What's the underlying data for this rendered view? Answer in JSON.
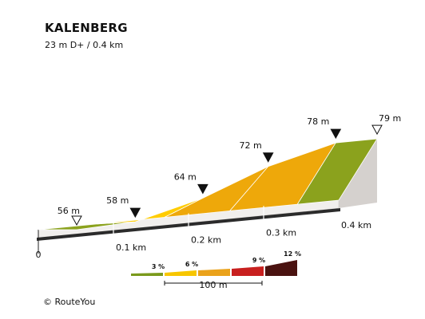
{
  "title": "KALENBERG",
  "subtitle": "23 m D+ / 0.4 km",
  "copyright": "© RouteYou",
  "chart_data": {
    "type": "area",
    "title": "KALENBERG",
    "subtitle": "23 m D+ / 0.4 km",
    "x_unit": "km",
    "xlim": [
      0,
      0.4
    ],
    "x_ticks": [
      {
        "value": 0,
        "label": "0"
      },
      {
        "value": 0.1,
        "label": "0.1 km"
      },
      {
        "value": 0.2,
        "label": "0.2 km"
      },
      {
        "value": 0.3,
        "label": "0.3 km"
      },
      {
        "value": 0.4,
        "label": "0.4 km"
      }
    ],
    "points": [
      {
        "x": 0,
        "elev": 56,
        "label": "56 m",
        "marker": "open"
      },
      {
        "x": 0.078,
        "elev": 58,
        "label": "58 m",
        "marker": "filled"
      },
      {
        "x": 0.168,
        "elev": 64,
        "label": "64 m",
        "marker": "filled"
      },
      {
        "x": 0.255,
        "elev": 72,
        "label": "72 m",
        "marker": "filled"
      },
      {
        "x": 0.345,
        "elev": 78,
        "label": "78 m",
        "marker": "filled"
      },
      {
        "x": 0.4,
        "elev": 79,
        "label": "79 m",
        "marker": "open"
      }
    ],
    "segments": [
      {
        "from": 0,
        "to": 0.078,
        "grade_class": "3 %"
      },
      {
        "from": 0.078,
        "to": 0.168,
        "grade_class": "6 %"
      },
      {
        "from": 0.168,
        "to": 0.255,
        "grade_class": "9 %"
      },
      {
        "from": 0.255,
        "to": 0.345,
        "grade_class": "9 %"
      },
      {
        "from": 0.345,
        "to": 0.4,
        "grade_class": "3 %"
      }
    ],
    "legend": {
      "items": [
        {
          "label": "3 %",
          "color": "#7a9a1c"
        },
        {
          "label": "6 %",
          "color": "#f7c600"
        },
        {
          "label": "9 %",
          "color": "#c8201f"
        },
        {
          "label": "12 %",
          "color": "#4a1210"
        }
      ],
      "extra_swatch_color": "#eaa21b",
      "scale_label": "100 m"
    },
    "colors": {
      "3 %": "#8ba21d",
      "6 %": "#ffcc00",
      "9 %": "#eea80a",
      "side": "#e6e3e1",
      "base": "#2b2b2b"
    }
  }
}
